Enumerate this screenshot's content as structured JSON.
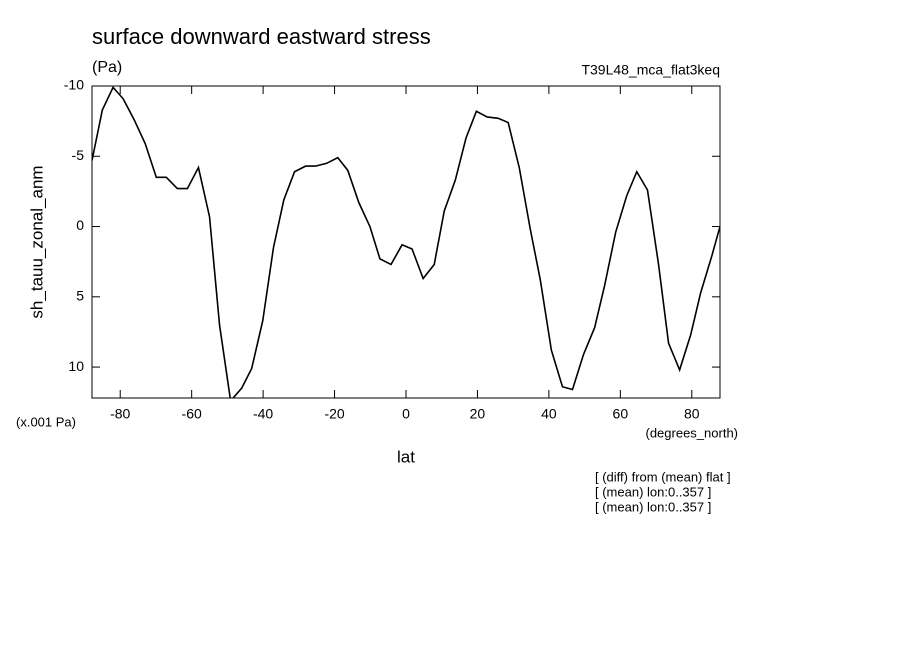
{
  "chart_data": {
    "type": "line",
    "title": "surface downward eastward stress",
    "subtitle": "(Pa)",
    "run_label": "T39L48_mca_flat3keq",
    "ylabel": "sh_tauu_zonal_anm",
    "y_unit_label": "(x.001 Pa)",
    "x_unit_label": "(degrees_north)",
    "xlabel": "lat",
    "annotations": [
      "[ (diff) from (mean) flat ]",
      "[ (mean) lon:0..357 ]",
      "[ (mean) lon:0..357 ]"
    ],
    "y_inverted": true,
    "xlim": [
      -87.9,
      87.9
    ],
    "ylim": [
      -10,
      12.2
    ],
    "xticks": [
      -80,
      -60,
      -40,
      -20,
      0,
      20,
      40,
      60,
      80
    ],
    "yticks": [
      -10,
      -5,
      0,
      5,
      10
    ],
    "series": [
      {
        "name": "sh_tauu_zonal_anm",
        "color": "#000000",
        "x": [
          -87.9,
          -85.0,
          -82.0,
          -79.2,
          -76.1,
          -73.0,
          -69.9,
          -67.1,
          -64.0,
          -61.2,
          -58.1,
          -55.0,
          -52.2,
          -49.1,
          -46.0,
          -43.2,
          -40.1,
          -37.1,
          -34.2,
          -31.2,
          -28.1,
          -25.3,
          -22.2,
          -19.1,
          -16.3,
          -13.2,
          -10.1,
          -7.3,
          -4.2,
          -1.1,
          1.7,
          4.8,
          7.9,
          10.7,
          13.8,
          16.8,
          19.7,
          22.7,
          25.8,
          28.6,
          31.7,
          34.8,
          37.6,
          40.7,
          43.8,
          46.6,
          49.7,
          52.8,
          55.6,
          58.7,
          61.8,
          64.6,
          67.6,
          70.7,
          73.5,
          76.6,
          79.7,
          82.5,
          85.6,
          87.9
        ],
        "values": [
          -4.7,
          -8.3,
          -9.9,
          -9.1,
          -7.6,
          -5.9,
          -3.5,
          -3.5,
          -2.7,
          -2.7,
          -4.2,
          -0.7,
          7.0,
          12.4,
          11.5,
          10.1,
          6.7,
          1.5,
          -1.9,
          -3.9,
          -4.3,
          -4.3,
          -4.5,
          -4.9,
          -4.0,
          -1.7,
          0.0,
          2.3,
          2.7,
          1.3,
          1.6,
          3.7,
          2.7,
          -1.1,
          -3.3,
          -6.3,
          -8.2,
          -7.8,
          -7.7,
          -7.4,
          -4.2,
          0.2,
          3.8,
          8.8,
          11.4,
          11.6,
          9.1,
          7.2,
          4.2,
          0.4,
          -2.2,
          -3.9,
          -2.6,
          2.7,
          8.3,
          10.2,
          7.7,
          4.7,
          2.1,
          0.0
        ]
      }
    ]
  }
}
